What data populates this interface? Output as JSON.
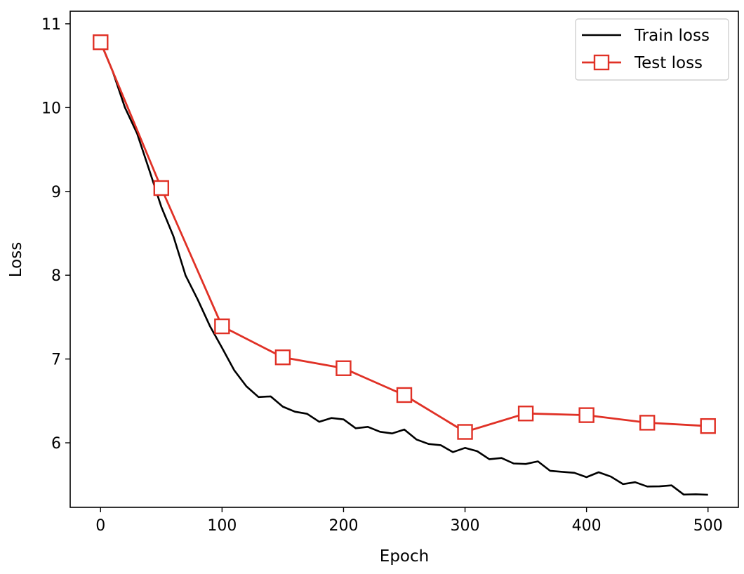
{
  "chart_data": {
    "type": "line",
    "title": "",
    "xlabel": "Epoch",
    "ylabel": "Loss",
    "xlim": [
      -25,
      525
    ],
    "ylim": [
      5.23,
      11.15
    ],
    "xticks": [
      0,
      100,
      200,
      300,
      400,
      500
    ],
    "yticks": [
      6,
      7,
      8,
      9,
      10,
      11
    ],
    "grid": false,
    "legend_position": "top-right",
    "series": [
      {
        "name": "Train loss",
        "style": "line",
        "color": "#000000",
        "x": [
          0,
          10,
          20,
          30,
          40,
          50,
          60,
          70,
          80,
          90,
          100,
          110,
          120,
          130,
          140,
          150,
          160,
          170,
          180,
          190,
          200,
          210,
          220,
          230,
          240,
          250,
          260,
          270,
          280,
          290,
          300,
          310,
          320,
          330,
          340,
          350,
          360,
          370,
          380,
          390,
          400,
          410,
          420,
          430,
          440,
          450,
          460,
          470,
          480,
          490,
          500
        ],
        "y": [
          10.78,
          10.45,
          10.05,
          9.65,
          9.25,
          8.82,
          8.45,
          8.05,
          7.7,
          7.35,
          7.15,
          6.85,
          6.7,
          6.58,
          6.5,
          6.43,
          6.38,
          6.34,
          6.3,
          6.27,
          6.24,
          6.2,
          6.18,
          6.16,
          6.13,
          6.1,
          6.05,
          6.0,
          5.97,
          5.93,
          5.9,
          5.87,
          5.84,
          5.81,
          5.78,
          5.75,
          5.72,
          5.69,
          5.67,
          5.64,
          5.62,
          5.6,
          5.58,
          5.55,
          5.52,
          5.5,
          5.47,
          5.44,
          5.42,
          5.4,
          5.38
        ]
      },
      {
        "name": "Test loss",
        "style": "line-square-markers",
        "color": "#e03126",
        "x": [
          0,
          50,
          100,
          150,
          200,
          250,
          300,
          350,
          400,
          450,
          500
        ],
        "y": [
          10.78,
          9.04,
          7.39,
          7.02,
          6.89,
          6.57,
          6.13,
          6.35,
          6.33,
          6.24,
          6.2
        ]
      }
    ]
  }
}
